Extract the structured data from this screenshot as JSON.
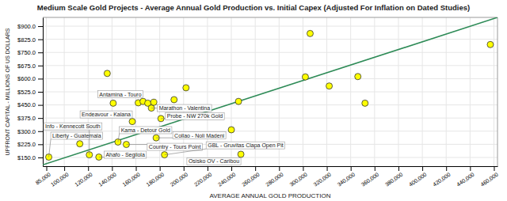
{
  "chart_data": {
    "type": "scatter",
    "title": "Medium Scale Gold Projects - Average Annual Gold Production vs. Initial Capex (Adjusted For Inflation on Dated Studies)",
    "x_label": "AVERAGE ANNUAL GOLD PRODUCTION",
    "y_label": "UPFRONT CAPITAL - MILLIONS OF US DOLLARS",
    "x": [
      87000,
      113000,
      121000,
      129000,
      136000,
      141000,
      145000,
      152000,
      157000,
      162000,
      166000,
      170000,
      173000,
      175000,
      177000,
      181000,
      184000,
      192000,
      202000,
      240000,
      246000,
      248000,
      302000,
      306000,
      322000,
      346000,
      352000,
      457000
    ],
    "values": [
      152,
      228,
      165,
      152,
      630,
      460,
      238,
      224,
      355,
      462,
      470,
      460,
      432,
      465,
      262,
      372,
      165,
      480,
      548,
      308,
      470,
      168,
      610,
      858,
      558,
      612,
      460,
      795
    ],
    "color": "#ffff00",
    "trend": {
      "type": "line",
      "x": [
        82000,
        463000
      ],
      "values": [
        108,
        950
      ],
      "color": "#2e8b57"
    },
    "annotations": [
      {
        "text": "Liberty - Guatemala",
        "x": 87000,
        "y": 152
      },
      {
        "text": "Info - Kennecott South",
        "x": 121000,
        "y": 165
      },
      {
        "text": "Ahafo - Segilola",
        "x": 129000,
        "y": 152
      },
      {
        "text": "Kama - Detour Gold",
        "x": 145000,
        "y": 238
      },
      {
        "text": "Country - Tours Point",
        "x": 152000,
        "y": 224
      },
      {
        "text": "Endeavour - Kalana",
        "x": 157000,
        "y": 355
      },
      {
        "text": "Antamina - Touro",
        "x": 166000,
        "y": 470
      },
      {
        "text": "Marathon - Valentina",
        "x": 173000,
        "y": 432
      },
      {
        "text": "Collao - Noli Madeni",
        "x": 177000,
        "y": 262
      },
      {
        "text": "Probe - NW 270k Gold",
        "x": 181000,
        "y": 372
      },
      {
        "text": "GBL - Gruvitas Clapa Open Pit",
        "x": 184000,
        "y": 165
      },
      {
        "text": "Osisko OV - Caribou",
        "x": 248000,
        "y": 168
      }
    ],
    "xlim": [
      82000,
      463000
    ],
    "xticks": [
      {
        "value": 85000,
        "label": "85,000"
      },
      {
        "value": 100000,
        "label": "100,000"
      },
      {
        "value": 120000,
        "label": "120,000"
      },
      {
        "value": 140000,
        "label": "140,000"
      },
      {
        "value": 160000,
        "label": "160,000"
      },
      {
        "value": 180000,
        "label": "180,000"
      },
      {
        "value": 200000,
        "label": "200,000"
      },
      {
        "value": 220000,
        "label": "220,000"
      },
      {
        "value": 240000,
        "label": "240,000"
      },
      {
        "value": 260000,
        "label": "260,000"
      },
      {
        "value": 280000,
        "label": "280,000"
      },
      {
        "value": 300000,
        "label": "300,000"
      },
      {
        "value": 320000,
        "label": "320,000"
      },
      {
        "value": 340000,
        "label": "340,000"
      },
      {
        "value": 360000,
        "label": "360,000"
      },
      {
        "value": 380000,
        "label": "380,000"
      },
      {
        "value": 400000,
        "label": "400,000"
      },
      {
        "value": 420000,
        "label": "420,000"
      },
      {
        "value": 440000,
        "label": "440,000"
      },
      {
        "value": 460000,
        "label": "460,000"
      }
    ],
    "ylim": [
      100,
      950
    ],
    "yticks": [
      {
        "value": 150,
        "label": "$150.0"
      },
      {
        "value": 225,
        "label": "$225.0"
      },
      {
        "value": 300,
        "label": "$300.0"
      },
      {
        "value": 375,
        "label": "$375.0"
      },
      {
        "value": 450,
        "label": "$450.0"
      },
      {
        "value": 525,
        "label": "$525.0"
      },
      {
        "value": 600,
        "label": "$600.0"
      },
      {
        "value": 675,
        "label": "$675.0"
      },
      {
        "value": 750,
        "label": "$750.0"
      },
      {
        "value": 825,
        "label": "$825.0"
      },
      {
        "value": 900,
        "label": "$900.0"
      }
    ],
    "grid": true
  }
}
